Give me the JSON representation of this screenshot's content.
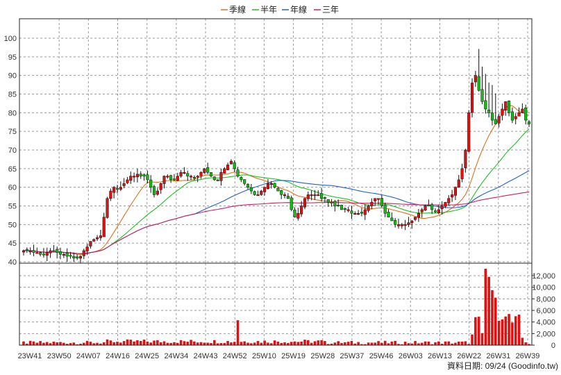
{
  "footer_text": "資料日期: 09/24 (Goodinfo.tw)",
  "chart_data": {
    "type": "candlestick_with_volume",
    "legend": {
      "placement": "top-center",
      "items": [
        {
          "name": "季線",
          "color": "#e07020"
        },
        {
          "name": "半年",
          "color": "#20c020"
        },
        {
          "name": "年線",
          "color": "#2060d0"
        },
        {
          "name": "三年",
          "color": "#d02060"
        }
      ]
    },
    "price_axis": {
      "min": 40,
      "max": 100,
      "ticks": [
        "40",
        "45",
        "50",
        "55",
        "60",
        "65",
        "70",
        "75",
        "80",
        "85",
        "90",
        "95",
        "100"
      ],
      "side": "left"
    },
    "volume_axis": {
      "min": 0,
      "max": 12000,
      "ticks": [
        "0",
        "2,000",
        "4,000",
        "6,000",
        "8,000",
        "10,000",
        "12,000"
      ],
      "side": "right"
    },
    "x_tick_labels": [
      "23W41",
      "23W50",
      "24W07",
      "24W16",
      "24W25",
      "24W34",
      "24W43",
      "24W52",
      "25W10",
      "25W19",
      "25W28",
      "25W37",
      "25W46",
      "26W03",
      "26W13",
      "26W22",
      "26W31",
      "26W39"
    ],
    "grid": true,
    "colors": {
      "up": "#e01010",
      "down": "#10c010",
      "volume": "#e01010"
    },
    "weekly_close_estimates": [
      43,
      43,
      43,
      42.5,
      42.5,
      42,
      42,
      42.5,
      43,
      43,
      42.5,
      42,
      42,
      41.5,
      41.5,
      41,
      41,
      41.5,
      43,
      44,
      45.5,
      46,
      46.5,
      47,
      52,
      57,
      59,
      60,
      59.5,
      60,
      61,
      62,
      63,
      63,
      63.5,
      63,
      63,
      62,
      60,
      58,
      59,
      61,
      63,
      63,
      62,
      62,
      63,
      64,
      64,
      63,
      63,
      62.5,
      63,
      64,
      65,
      64,
      63,
      62,
      62,
      64,
      65,
      66,
      67,
      65,
      63,
      62,
      61,
      60,
      59,
      58,
      58,
      59,
      60,
      61,
      61,
      60,
      59,
      58,
      58,
      57,
      54,
      52,
      53,
      55,
      57,
      58,
      58,
      58,
      58,
      57,
      57,
      56,
      56,
      55,
      55,
      54,
      54,
      54,
      53,
      53,
      53,
      53,
      54,
      55,
      56,
      57,
      57,
      55,
      53,
      52,
      51,
      50,
      50,
      50,
      50,
      50.5,
      51,
      52,
      53,
      54,
      55,
      55,
      54,
      53.5,
      54,
      55,
      56,
      57,
      58,
      60,
      62,
      65,
      70,
      80,
      88,
      90,
      86,
      83,
      81,
      80,
      78,
      77,
      79,
      81,
      83,
      80,
      78,
      79,
      80,
      81,
      78,
      77
    ]
  }
}
